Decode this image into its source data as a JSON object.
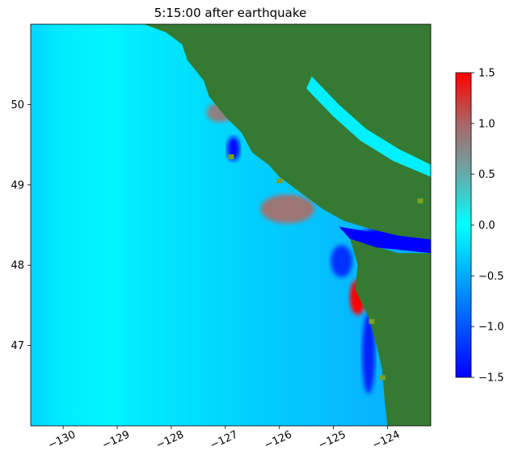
{
  "title": "5:15:00 after earthquake",
  "colors": {
    "land": "#357a32",
    "land_patch": "#7ea020",
    "ocean_near_zero": "#00f0ff",
    "ocean_mid": "#0bbcff",
    "trough": "#0000ff",
    "crest": "#ff0000",
    "axis": "#000000",
    "background": "#ffffff"
  },
  "colormap": {
    "stops": [
      {
        "value": -1.5,
        "color": "#0000ff"
      },
      {
        "value": 0.0,
        "color": "#00ffff"
      },
      {
        "value": 0.5,
        "color": "#66aaaa"
      },
      {
        "value": 1.0,
        "color": "#aa6666"
      },
      {
        "value": 1.5,
        "color": "#ff0000"
      }
    ]
  },
  "chart_data": {
    "type": "heatmap",
    "title": "5:15:00 after earthquake",
    "xlabel": "",
    "ylabel": "",
    "xlim": [
      -130.6,
      -123.2
    ],
    "ylim": [
      46.0,
      51.0
    ],
    "x_ticks": [
      "−130",
      "−129",
      "−128",
      "−127",
      "−126",
      "−125",
      "−124"
    ],
    "x_tick_values": [
      -130,
      -129,
      -128,
      -127,
      -126,
      -125,
      -124
    ],
    "y_ticks": [
      "47",
      "48",
      "49",
      "50"
    ],
    "y_tick_values": [
      47,
      48,
      49,
      50
    ],
    "colorbar": {
      "range": [
        -1.5,
        1.5
      ],
      "ticks": [
        "−1.5",
        "−1.0",
        "−0.5",
        "0.0",
        "0.5",
        "1.0",
        "1.5"
      ],
      "tick_values": [
        -1.5,
        -1.0,
        -0.5,
        0.0,
        0.5,
        1.0,
        1.5
      ]
    },
    "land_outline": [
      [
        -128.5,
        51.0
      ],
      [
        -128.3,
        50.95
      ],
      [
        -128.1,
        50.9
      ],
      [
        -127.8,
        50.75
      ],
      [
        -127.7,
        50.55
      ],
      [
        -127.4,
        50.3
      ],
      [
        -127.3,
        50.1
      ],
      [
        -127.0,
        49.85
      ],
      [
        -126.7,
        49.65
      ],
      [
        -126.5,
        49.4
      ],
      [
        -126.2,
        49.25
      ],
      [
        -126.0,
        49.1
      ],
      [
        -125.8,
        49.0
      ],
      [
        -125.5,
        48.85
      ],
      [
        -125.2,
        48.7
      ],
      [
        -124.8,
        48.55
      ],
      [
        -124.3,
        48.45
      ],
      [
        -123.7,
        48.35
      ],
      [
        -123.2,
        48.3
      ],
      [
        -123.2,
        51.0
      ]
    ],
    "land_outline_2": [
      [
        -124.7,
        48.35
      ],
      [
        -124.55,
        48.0
      ],
      [
        -124.6,
        47.7
      ],
      [
        -124.35,
        47.35
      ],
      [
        -124.2,
        47.0
      ],
      [
        -124.1,
        46.7
      ],
      [
        -124.05,
        46.3
      ],
      [
        -124.0,
        46.0
      ],
      [
        -123.2,
        46.0
      ],
      [
        -123.2,
        48.15
      ],
      [
        -123.8,
        48.15
      ],
      [
        -124.3,
        48.25
      ]
    ],
    "anomalies": [
      {
        "name": "crest-nootka",
        "x": -125.85,
        "y": 48.7,
        "value": 0.9,
        "rx": 0.5,
        "ry": 0.18
      },
      {
        "name": "crest-grays",
        "x": -124.55,
        "y": 47.6,
        "value": 1.5,
        "rx": 0.15,
        "ry": 0.22
      },
      {
        "name": "crest-brooks",
        "x": -127.1,
        "y": 49.9,
        "value": 0.8,
        "rx": 0.25,
        "ry": 0.12
      },
      {
        "name": "trough-juan-de-fuca",
        "x": -123.9,
        "y": 48.35,
        "value": -1.5,
        "rx": 0.7,
        "ry": 0.12
      },
      {
        "name": "trough-coast-north",
        "x": -126.85,
        "y": 49.45,
        "value": -1.4,
        "rx": 0.12,
        "ry": 0.15
      },
      {
        "name": "trough-cape-flattery",
        "x": -124.85,
        "y": 48.05,
        "value": -1.2,
        "rx": 0.2,
        "ry": 0.2
      },
      {
        "name": "trough-coast-south",
        "x": -124.35,
        "y": 46.9,
        "value": -1.3,
        "rx": 0.12,
        "ry": 0.5
      }
    ]
  }
}
